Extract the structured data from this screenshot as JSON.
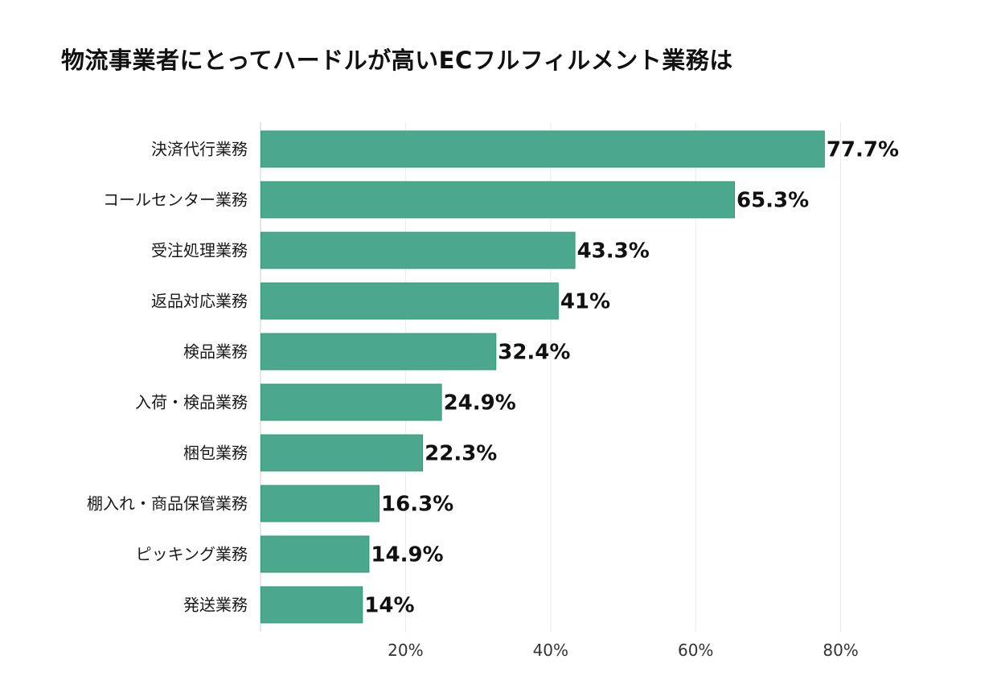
{
  "chart_data": {
    "type": "bar",
    "orientation": "horizontal",
    "title": "物流事業者にとってハードルが高いECフルフィルメント業務は",
    "categories": [
      "決済代行業務",
      "コールセンター業務",
      "受注処理業務",
      "返品対応業務",
      "検品業務",
      "入荷・検品業務",
      "梱包業務",
      "棚入れ・商品保管業務",
      "ピッキング業務",
      "発送業務"
    ],
    "values": [
      77.7,
      65.3,
      43.3,
      41,
      32.4,
      24.9,
      22.3,
      16.3,
      14.9,
      14
    ],
    "value_labels": [
      "77.7%",
      "65.3%",
      "43.3%",
      "41%",
      "32.4%",
      "24.9%",
      "22.3%",
      "16.3%",
      "14.9%",
      "14%"
    ],
    "xlabel": "",
    "ylabel": "",
    "xlim": [
      0,
      100
    ],
    "x_ticks": [
      20,
      40,
      60,
      80
    ],
    "x_tick_labels": [
      "20%",
      "40%",
      "60%",
      "80%"
    ],
    "grid": true,
    "legend": "none",
    "colors": {
      "bar": "#4ca88c",
      "bar_edge": "#2f9a78",
      "grid": "#ebebeb",
      "axis": "#cfcfcf"
    }
  }
}
